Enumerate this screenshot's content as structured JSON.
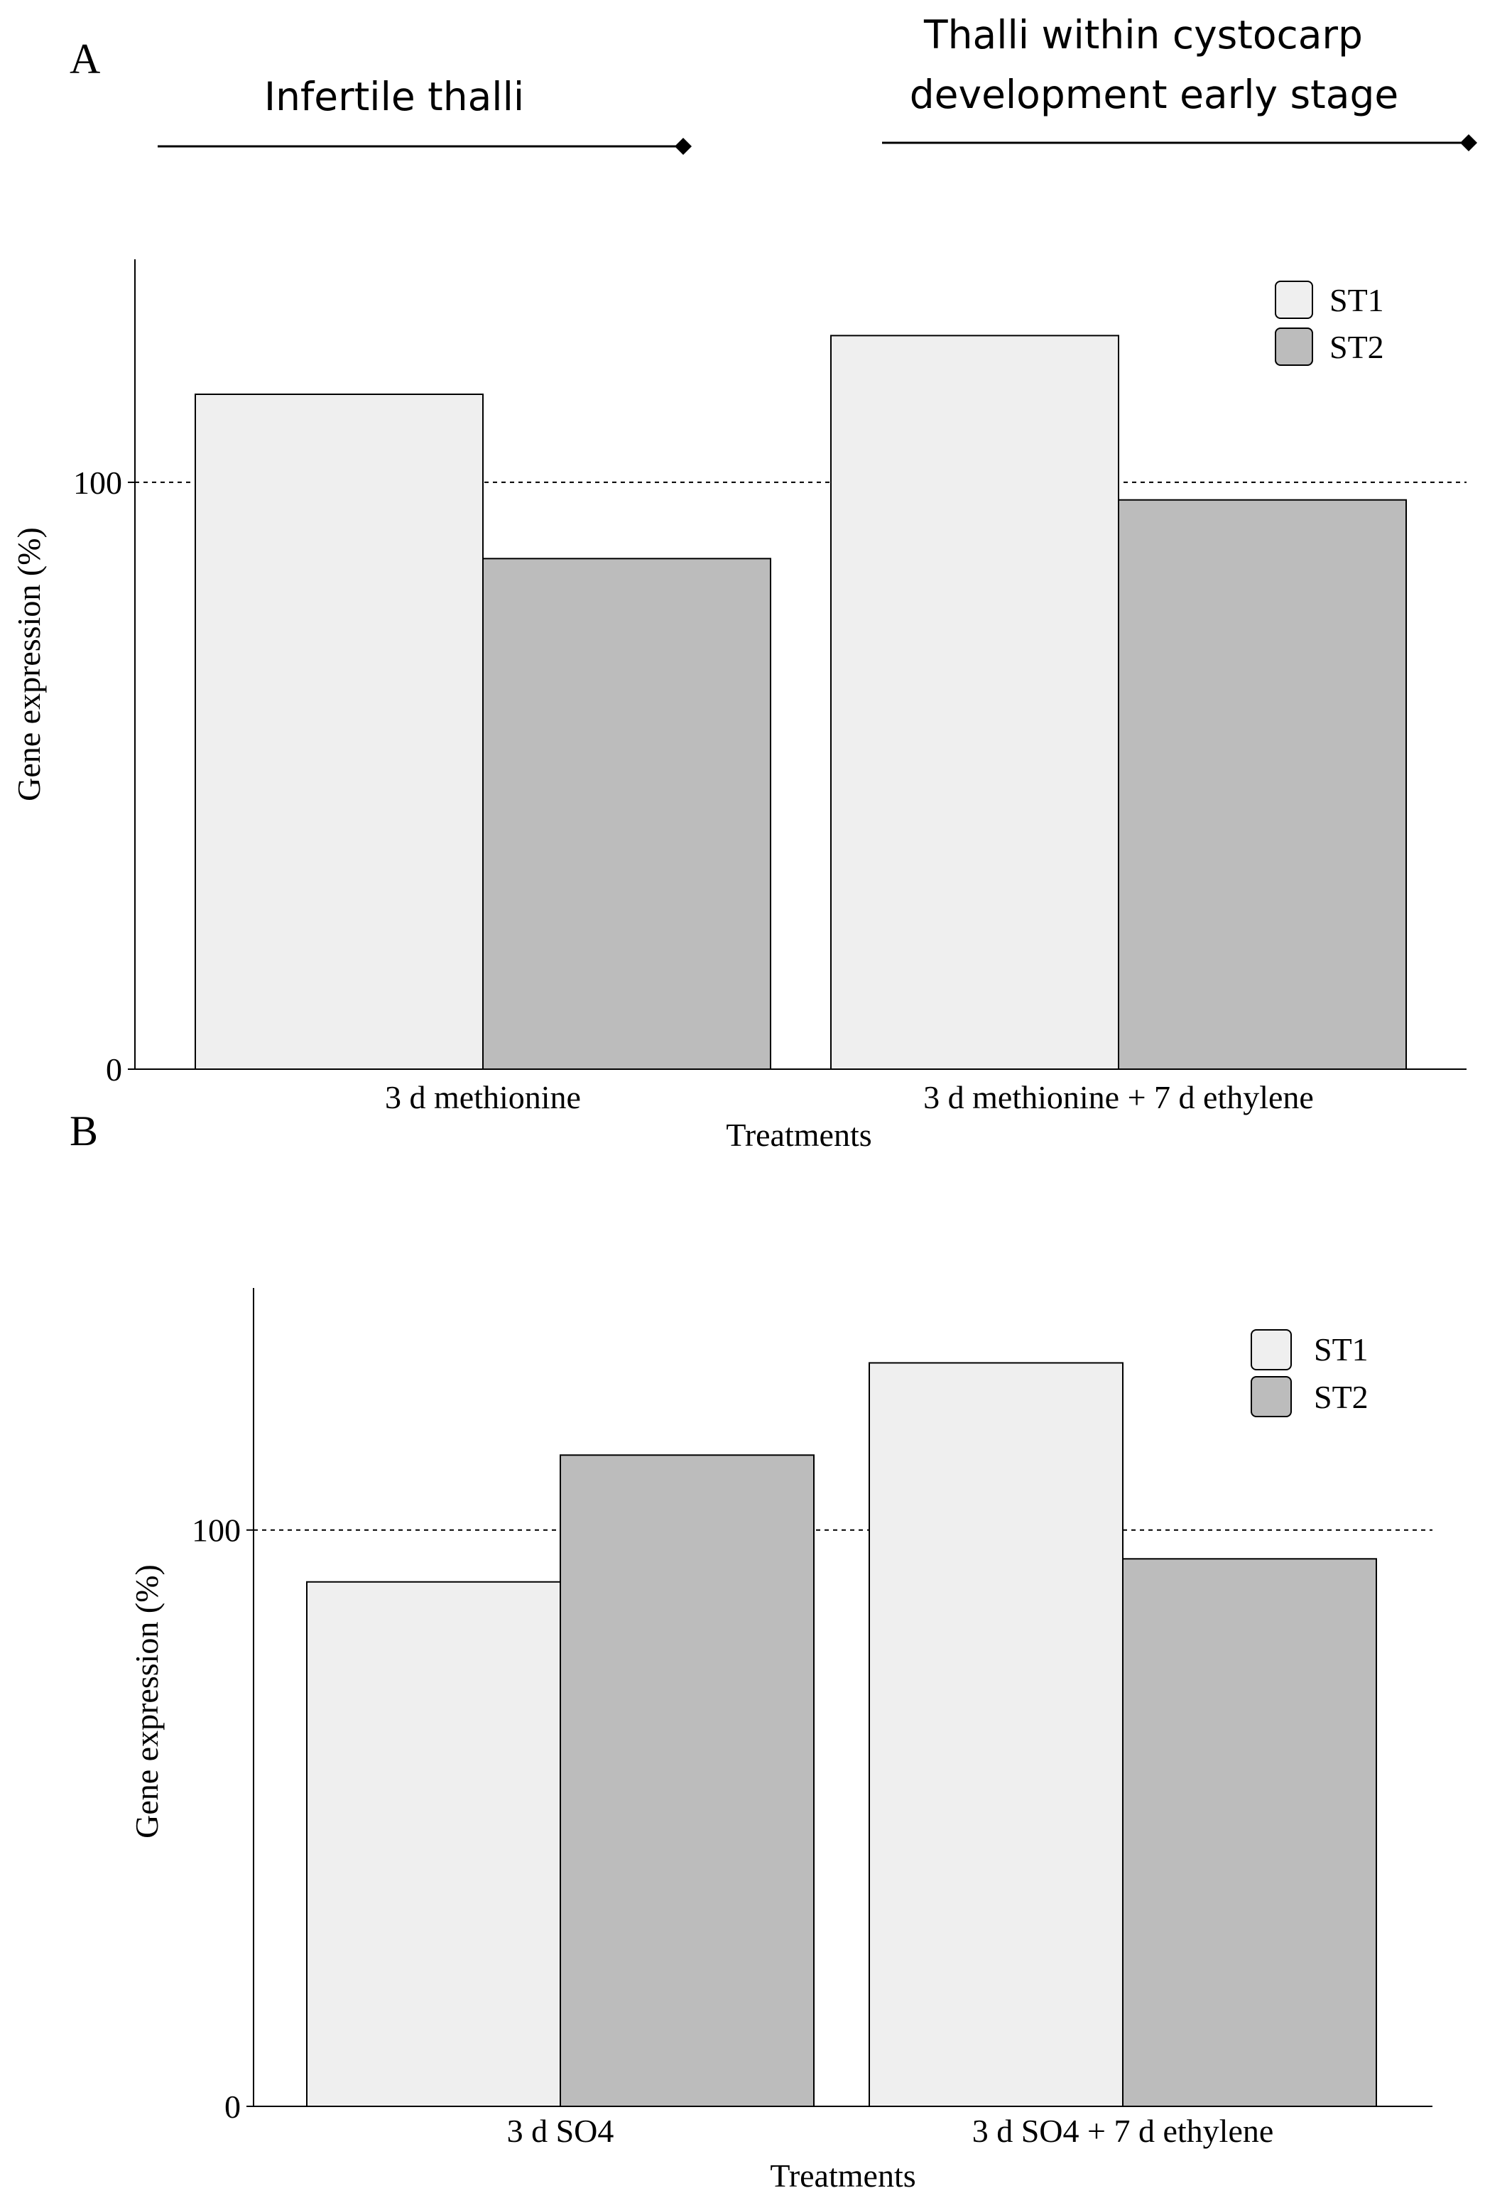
{
  "colors": {
    "st1": "#efefef",
    "st2": "#bcbcbc",
    "axis": "#000000",
    "refline": "#000000"
  },
  "panel_labels": [
    "A",
    "B"
  ],
  "stage_labels": {
    "left": "Infertile thalli",
    "right_line1": "Thalli within cystocarp",
    "right_line2": "development  early stage"
  },
  "chart_data": [
    {
      "type": "bar",
      "panel": "A",
      "title": "",
      "categories": [
        "3 d methionine",
        "3 d methionine + 7 d ethylene"
      ],
      "series": [
        {
          "name": "ST1",
          "values": [
            115,
            125
          ]
        },
        {
          "name": "ST2",
          "values": [
            87,
            97
          ]
        }
      ],
      "xlabel": "Treatments",
      "ylabel": "Gene expression (%)",
      "ylim": [
        0,
        138
      ],
      "yticks": [
        0,
        100
      ],
      "reference_line": 100,
      "legend": "top-right"
    },
    {
      "type": "bar",
      "panel": "B",
      "title": "",
      "categories": [
        "3 d SO4",
        "3 d SO4 + 7 d ethylene"
      ],
      "series": [
        {
          "name": "ST1",
          "values": [
            91,
            129
          ]
        },
        {
          "name": "ST2",
          "values": [
            113,
            95
          ]
        }
      ],
      "xlabel": "Treatments",
      "ylabel": "Gene expression (%)",
      "ylim": [
        0,
        142
      ],
      "yticks": [
        0,
        100
      ],
      "reference_line": 100,
      "legend": "top-right"
    }
  ]
}
